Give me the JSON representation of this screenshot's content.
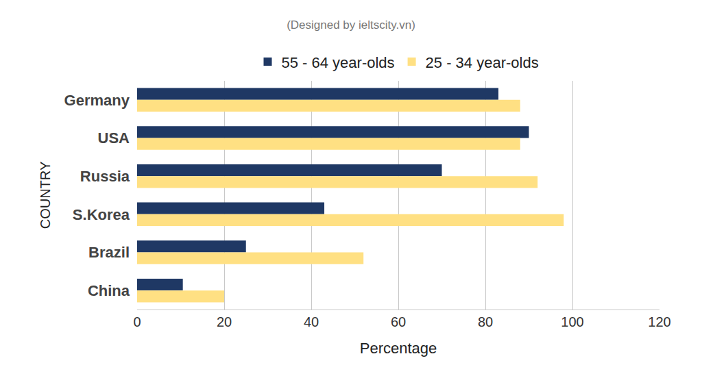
{
  "chart_data": {
    "type": "bar",
    "orientation": "horizontal",
    "title": "(Designed by ieltscity.vn)",
    "x_label": "Percentage",
    "y_label": "COUNTRY",
    "categories": [
      "Germany",
      "USA",
      "Russia",
      "S.Korea",
      "Brazil",
      "China"
    ],
    "series": [
      {
        "name": "55 - 64 year-olds",
        "color": "#1f3864",
        "values": [
          83,
          90,
          70,
          43,
          25,
          10.5
        ]
      },
      {
        "name": "25 - 34 year-olds",
        "color": "#ffe083",
        "values": [
          88,
          88,
          92,
          98,
          52,
          20
        ]
      }
    ],
    "xlim": [
      0,
      120
    ],
    "xticks": [
      0,
      20,
      40,
      60,
      80,
      100,
      120
    ],
    "grid": true,
    "legend": "top"
  }
}
